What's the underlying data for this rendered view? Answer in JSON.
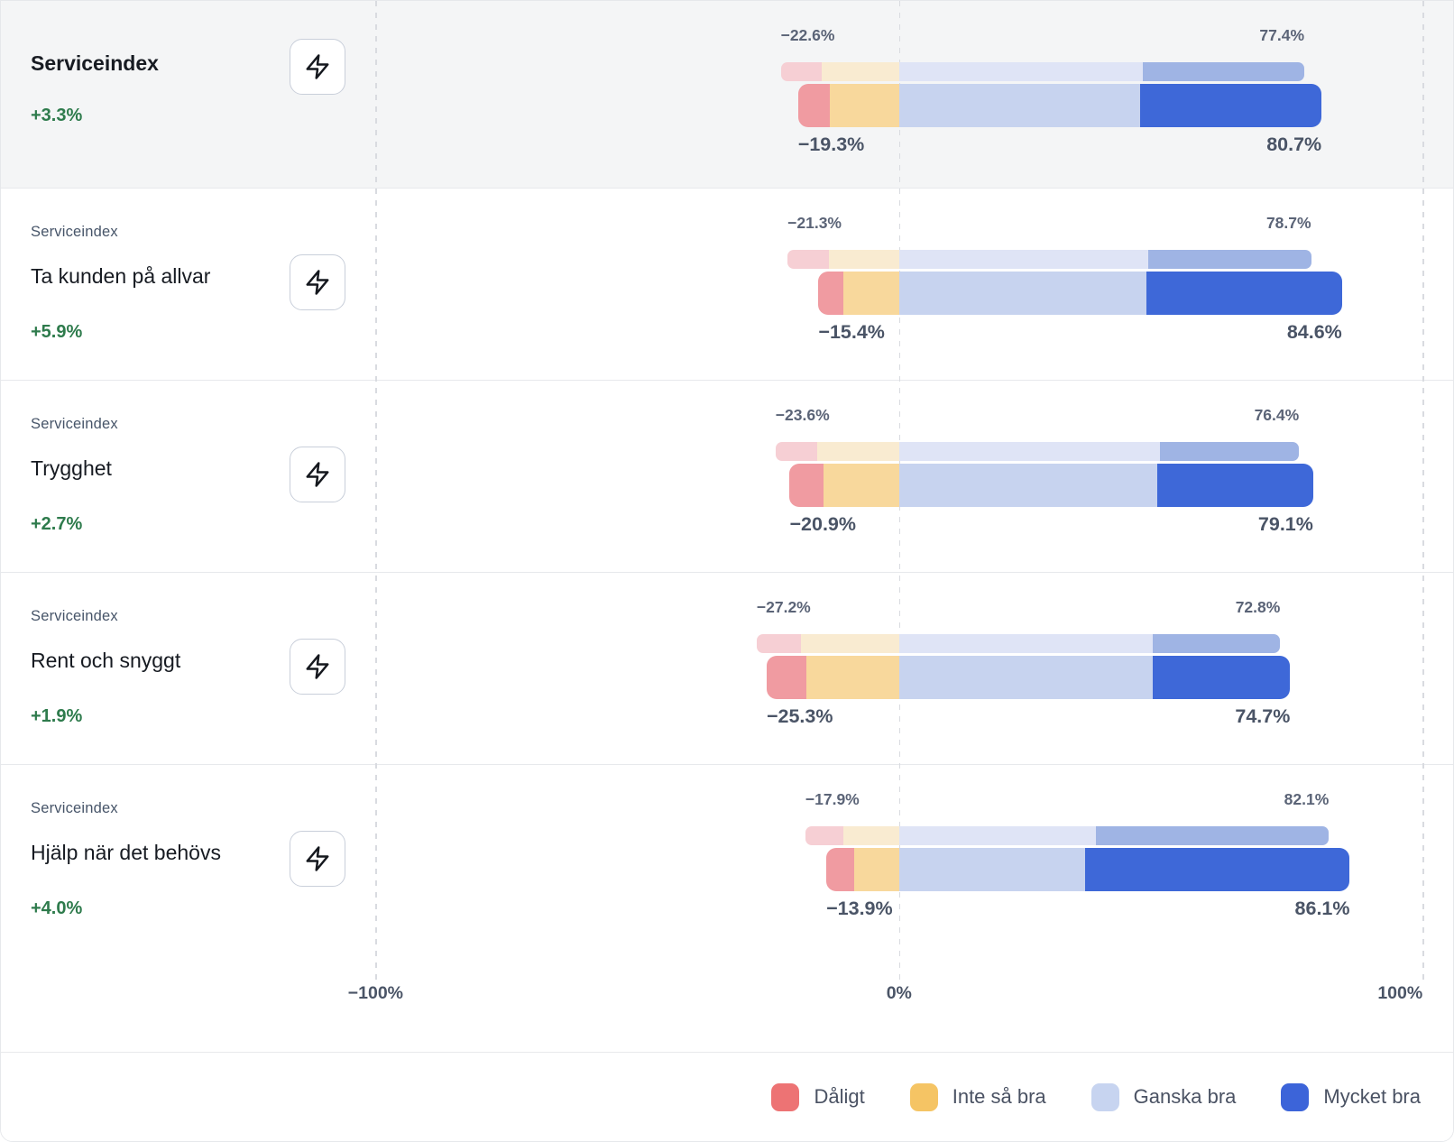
{
  "colors": {
    "previous_segments": [
      "#f6cfd4",
      "#f9ebd1",
      "#dfe4f6",
      "#9fb4e4"
    ],
    "current_segments": [
      "#f09ba1",
      "#f8d89c",
      "#c7d3ef",
      "#3e68d8"
    ],
    "delta_positive": "#2e7b4c",
    "highlight_row_background": "#f4f5f6",
    "gridline": "#d9dbe0"
  },
  "icons": {
    "row_action": "lightning-bolt"
  },
  "axis": {
    "ticks": [
      {
        "label": "−100%",
        "value": -100
      },
      {
        "label": "0%",
        "value": 0
      },
      {
        "label": "100%",
        "value": 100
      }
    ]
  },
  "legend": {
    "items": [
      {
        "label": "Dåligt",
        "color": "#ed7374"
      },
      {
        "label": "Inte så bra",
        "color": "#f5c464"
      },
      {
        "label": "Ganska bra",
        "color": "#c7d4f0"
      },
      {
        "label": "Mycket bra",
        "color": "#3c64d9"
      }
    ]
  },
  "chart_data": {
    "type": "bar",
    "variant": "diverging-stacked-horizontal",
    "categories": [
      "Dåligt",
      "Inte så bra",
      "Ganska bra",
      "Mycket bra"
    ],
    "series_per_row": [
      "previous-period",
      "current-period"
    ],
    "axis": {
      "min": -100,
      "max": 100,
      "tick_labels": [
        "−100%",
        "0%",
        "100%"
      ]
    },
    "legend_position": "bottom-right",
    "rows": [
      {
        "overline": "",
        "title": "Serviceindex",
        "delta": "+3.3%",
        "highlight": true,
        "previous": {
          "negative_label": "−22.6%",
          "positive_label": "77.4%",
          "segments": [
            7.9,
            14.7,
            46.6,
            30.8
          ]
        },
        "current": {
          "negative_label": "−19.3%",
          "positive_label": "80.7%",
          "segments": [
            6.1,
            13.2,
            46.0,
            34.7
          ]
        }
      },
      {
        "overline": "Serviceindex",
        "title": "Ta kunden på allvar",
        "delta": "+5.9%",
        "highlight": false,
        "previous": {
          "negative_label": "−21.3%",
          "positive_label": "78.7%",
          "segments": [
            7.9,
            13.4,
            47.6,
            31.1
          ]
        },
        "current": {
          "negative_label": "−15.4%",
          "positive_label": "84.6%",
          "segments": [
            4.8,
            10.6,
            47.3,
            37.3
          ]
        }
      },
      {
        "overline": "Serviceindex",
        "title": "Trygghet",
        "delta": "+2.7%",
        "highlight": false,
        "previous": {
          "negative_label": "−23.6%",
          "positive_label": "76.4%",
          "segments": [
            8.0,
            15.6,
            49.8,
            26.6
          ]
        },
        "current": {
          "negative_label": "−20.9%",
          "positive_label": "79.1%",
          "segments": [
            6.5,
            14.4,
            49.3,
            29.8
          ]
        }
      },
      {
        "overline": "Serviceindex",
        "title": "Rent och snyggt",
        "delta": "+1.9%",
        "highlight": false,
        "previous": {
          "negative_label": "−27.2%",
          "positive_label": "72.8%",
          "segments": [
            8.4,
            18.8,
            48.4,
            24.4
          ]
        },
        "current": {
          "negative_label": "−25.3%",
          "positive_label": "74.7%",
          "segments": [
            7.6,
            17.7,
            48.4,
            26.3
          ]
        }
      },
      {
        "overline": "Serviceindex",
        "title": "Hjälp när det behövs",
        "delta": "+4.0%",
        "highlight": false,
        "previous": {
          "negative_label": "−17.9%",
          "positive_label": "82.1%",
          "segments": [
            7.3,
            10.6,
            37.6,
            44.5
          ]
        },
        "current": {
          "negative_label": "−13.9%",
          "positive_label": "86.1%",
          "segments": [
            5.4,
            8.5,
            35.5,
            50.6
          ]
        }
      }
    ]
  }
}
